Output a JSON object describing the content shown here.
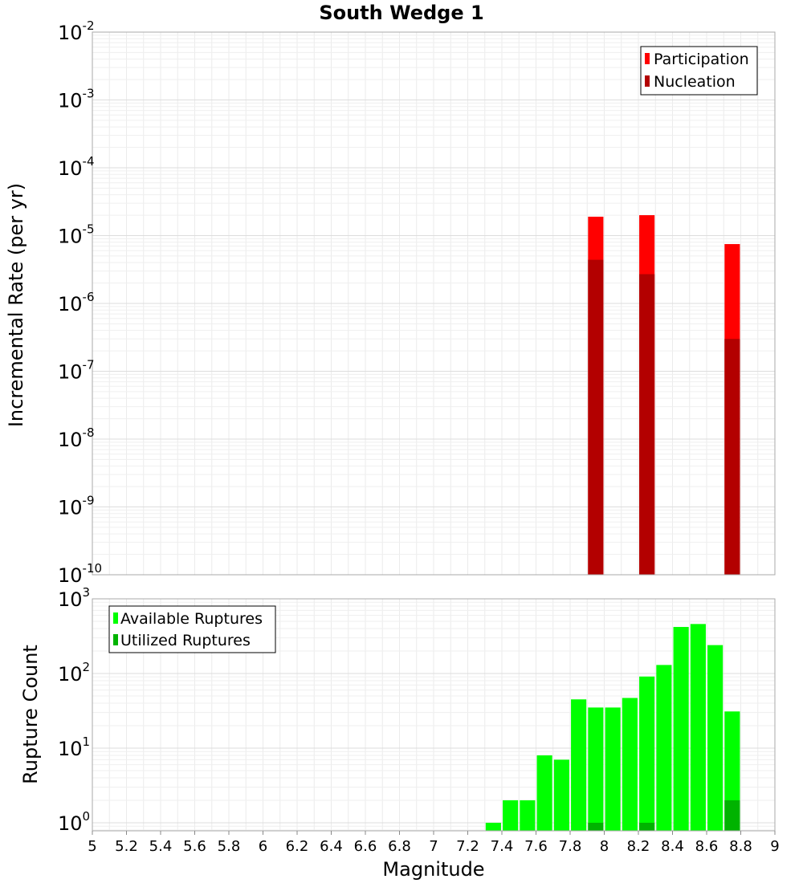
{
  "chart_data": [
    {
      "type": "bar",
      "title": "South Wedge 1",
      "xlabel": "",
      "ylabel": "Incremental Rate (per yr)",
      "yscale": "log",
      "xlim": [
        5,
        9
      ],
      "ylim": [
        1e-10,
        0.01
      ],
      "grid": true,
      "legend_position": "top-right",
      "y_ticks": [
        {
          "base": "10",
          "exp": "-10",
          "value": 1e-10
        },
        {
          "base": "10",
          "exp": "-9",
          "value": 1e-09
        },
        {
          "base": "10",
          "exp": "-8",
          "value": 1e-08
        },
        {
          "base": "10",
          "exp": "-7",
          "value": 1e-07
        },
        {
          "base": "10",
          "exp": "-6",
          "value": 1e-06
        },
        {
          "base": "10",
          "exp": "-5",
          "value": 1e-05
        },
        {
          "base": "10",
          "exp": "-4",
          "value": 0.0001
        },
        {
          "base": "10",
          "exp": "-3",
          "value": 0.001
        },
        {
          "base": "10",
          "exp": "-2",
          "value": 0.01
        }
      ],
      "series": [
        {
          "name": "Participation",
          "color": "#ff0000",
          "points": [
            {
              "x": 7.95,
              "y": 1.9e-05
            },
            {
              "x": 8.25,
              "y": 2e-05
            },
            {
              "x": 8.75,
              "y": 7.5e-06
            }
          ]
        },
        {
          "name": "Nucleation",
          "color": "#b30000",
          "points": [
            {
              "x": 7.95,
              "y": 4.4e-06
            },
            {
              "x": 8.25,
              "y": 2.7e-06
            },
            {
              "x": 8.75,
              "y": 3e-07
            }
          ]
        }
      ]
    },
    {
      "type": "bar",
      "title": "",
      "xlabel": "Magnitude",
      "ylabel": "Rupture Count",
      "yscale": "log",
      "xlim": [
        5,
        9
      ],
      "ylim": [
        0.78,
        1000
      ],
      "grid": true,
      "legend_position": "top-left",
      "x_ticks": [
        "5",
        "5.2",
        "5.4",
        "5.6",
        "5.8",
        "6",
        "6.2",
        "6.4",
        "6.6",
        "6.8",
        "7",
        "7.2",
        "7.4",
        "7.6",
        "7.8",
        "8",
        "8.2",
        "8.4",
        "8.6",
        "8.8",
        "9"
      ],
      "y_ticks": [
        {
          "base": "10",
          "exp": "0",
          "value": 1
        },
        {
          "base": "10",
          "exp": "1",
          "value": 10
        },
        {
          "base": "10",
          "exp": "2",
          "value": 100
        },
        {
          "base": "10",
          "exp": "3",
          "value": 1000
        }
      ],
      "series": [
        {
          "name": "Available Ruptures",
          "color": "#00ff00",
          "points": [
            {
              "x": 7.35,
              "y": 1
            },
            {
              "x": 7.45,
              "y": 2
            },
            {
              "x": 7.55,
              "y": 2
            },
            {
              "x": 7.65,
              "y": 8
            },
            {
              "x": 7.75,
              "y": 7
            },
            {
              "x": 7.85,
              "y": 45
            },
            {
              "x": 7.95,
              "y": 35
            },
            {
              "x": 8.05,
              "y": 35
            },
            {
              "x": 8.15,
              "y": 47
            },
            {
              "x": 8.25,
              "y": 91
            },
            {
              "x": 8.35,
              "y": 130
            },
            {
              "x": 8.45,
              "y": 420
            },
            {
              "x": 8.55,
              "y": 460
            },
            {
              "x": 8.65,
              "y": 240
            },
            {
              "x": 8.75,
              "y": 31
            }
          ]
        },
        {
          "name": "Utilized Ruptures",
          "color": "#00b300",
          "points": [
            {
              "x": 7.95,
              "y": 1
            },
            {
              "x": 8.25,
              "y": 1
            },
            {
              "x": 8.75,
              "y": 2
            }
          ]
        }
      ]
    }
  ]
}
